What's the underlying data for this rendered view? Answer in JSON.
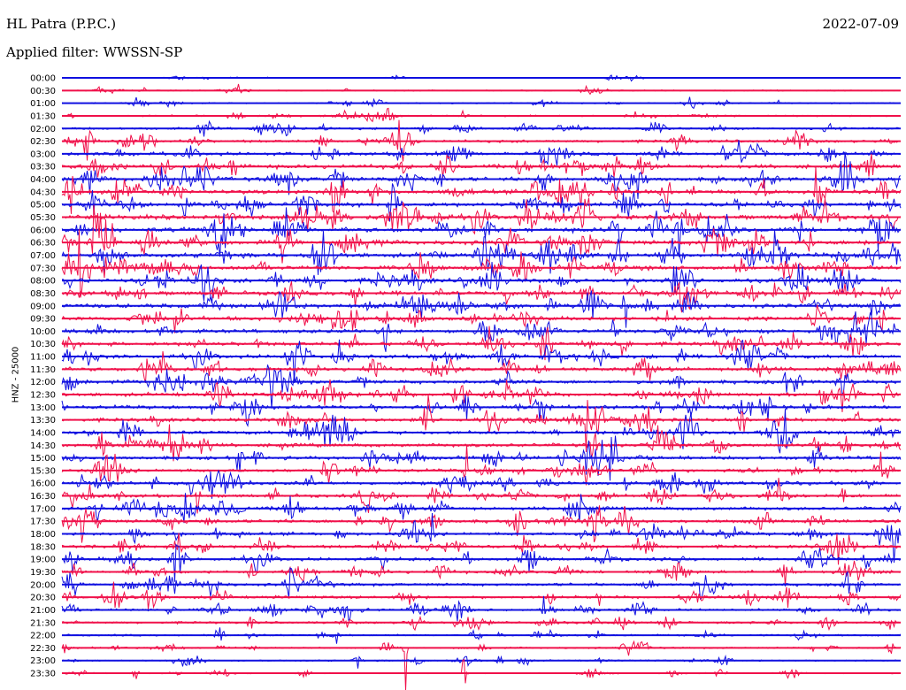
{
  "header": {
    "station": "HL Patra (P.P.C.)",
    "date": "2022-07-09",
    "filter": "Applied filter: WWSSN-SP"
  },
  "colors": {
    "trace_a": "#1010e0",
    "trace_b": "#f0104a",
    "background": "#ffffff",
    "text": "#000000"
  },
  "chart_data": {
    "type": "line",
    "title": "HL Patra (P.P.C.)",
    "subtitle": "Applied filter: WWSSN-SP",
    "date": "2022-07-09",
    "ylabel": "HNZ - 25000",
    "xlabel": "",
    "grid": false,
    "rows": [
      "00:00",
      "00:30",
      "01:00",
      "01:30",
      "02:00",
      "02:30",
      "03:00",
      "03:30",
      "04:00",
      "04:30",
      "05:00",
      "05:30",
      "06:00",
      "06:30",
      "07:00",
      "07:30",
      "08:00",
      "08:30",
      "09:00",
      "09:30",
      "10:00",
      "10:30",
      "11:00",
      "11:30",
      "12:00",
      "12:30",
      "13:00",
      "13:30",
      "14:00",
      "14:30",
      "15:00",
      "15:30",
      "16:00",
      "16:30",
      "17:00",
      "17:30",
      "18:00",
      "18:30",
      "19:00",
      "19:30",
      "20:00",
      "20:30",
      "21:00",
      "21:30",
      "22:00",
      "22:30",
      "23:00",
      "23:30"
    ],
    "row_colors": [
      "trace_a",
      "trace_b"
    ],
    "relative_amplitude": [
      0.2,
      0.3,
      0.35,
      0.45,
      0.6,
      0.75,
      0.9,
      1.05,
      1.1,
      1.15,
      1.15,
      1.2,
      1.2,
      1.2,
      1.2,
      1.15,
      1.15,
      1.1,
      1.1,
      1.05,
      1.05,
      1.0,
      1.0,
      1.0,
      1.0,
      1.0,
      1.0,
      0.95,
      0.95,
      0.95,
      0.95,
      0.9,
      0.9,
      0.9,
      0.9,
      0.9,
      0.85,
      0.85,
      0.85,
      0.8,
      0.8,
      0.75,
      0.7,
      0.6,
      0.5,
      0.45,
      0.4,
      0.35
    ]
  }
}
